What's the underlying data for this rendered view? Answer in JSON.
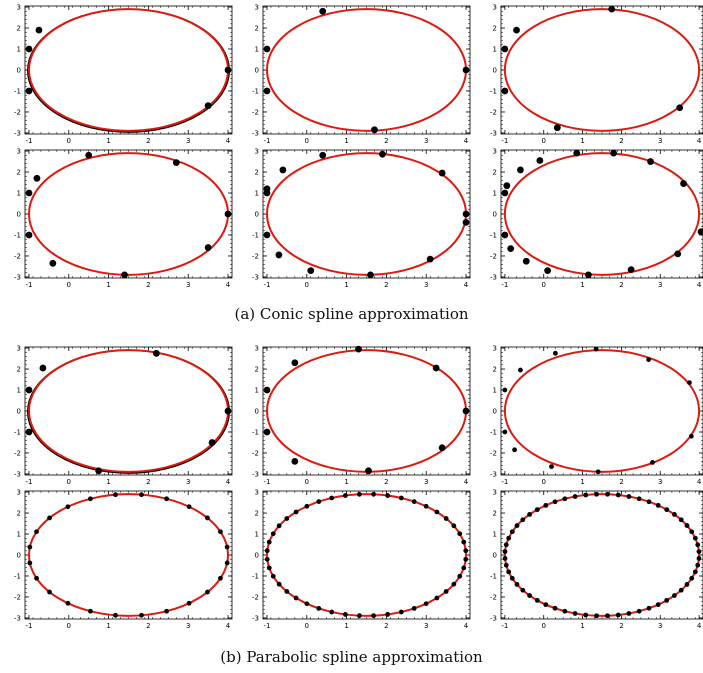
{
  "captions": {
    "a": "(a)  Conic spline approximation",
    "b": "(b)  Parabolic spline approximation"
  },
  "colors": {
    "ellipse": "#e0190e",
    "approx": "#000000",
    "points": "#000000",
    "frame": "#000000"
  },
  "chart_data": [
    {
      "group": "a",
      "type": "scatter",
      "xticks": [
        -1,
        0,
        1,
        2,
        3,
        4
      ],
      "yticks": [
        -3,
        -2,
        -1,
        0,
        1,
        2,
        3
      ],
      "xlim": [
        -1.1,
        4.1
      ],
      "ylim": [
        -3.05,
        3.05
      ],
      "ellipse": {
        "cx": 1.5,
        "cy": 0,
        "a": 2.5,
        "b": 2.9
      },
      "points": [
        [
          -1,
          1
        ],
        [
          -0.75,
          1.9
        ],
        [
          4,
          0
        ],
        [
          3.5,
          -1.7
        ],
        [
          -1,
          -1
        ]
      ],
      "bigPoints": true,
      "showApprox": true
    },
    {
      "group": "a",
      "type": "scatter",
      "xticks": [
        -1,
        0,
        1,
        2,
        3,
        4
      ],
      "yticks": [
        -3,
        -2,
        -1,
        0,
        1,
        2,
        3
      ],
      "xlim": [
        -1.1,
        4.1
      ],
      "ylim": [
        -3.05,
        3.05
      ],
      "ellipse": {
        "cx": 1.5,
        "cy": 0,
        "a": 2.5,
        "b": 2.9
      },
      "points": [
        [
          -1,
          1
        ],
        [
          0.4,
          2.8
        ],
        [
          4,
          0
        ],
        [
          1.7,
          -2.85
        ],
        [
          -1,
          -1
        ]
      ],
      "bigPoints": true,
      "showApprox": false
    },
    {
      "group": "a",
      "type": "scatter",
      "xticks": [
        -1,
        0,
        1,
        2,
        3,
        4
      ],
      "yticks": [
        -3,
        -2,
        -1,
        0,
        1,
        2,
        3
      ],
      "xlim": [
        -1.1,
        4.1
      ],
      "ylim": [
        -3.05,
        3.05
      ],
      "ellipse": {
        "cx": 1.5,
        "cy": 0,
        "a": 2.5,
        "b": 2.9
      },
      "points": [
        [
          -1,
          1
        ],
        [
          -0.7,
          1.9
        ],
        [
          1.75,
          2.9
        ],
        [
          3.5,
          -1.8
        ],
        [
          0.35,
          -2.75
        ],
        [
          -1,
          -1
        ]
      ],
      "bigPoints": true,
      "showApprox": false
    },
    {
      "group": "a",
      "type": "scatter",
      "xticks": [
        -1,
        0,
        1,
        2,
        3,
        4
      ],
      "yticks": [
        -3,
        -2,
        -1,
        0,
        1,
        2,
        3
      ],
      "xlim": [
        -1.1,
        4.1
      ],
      "ylim": [
        -3.05,
        3.05
      ],
      "ellipse": {
        "cx": 1.5,
        "cy": 0,
        "a": 2.5,
        "b": 2.9
      },
      "points": [
        [
          -1,
          1
        ],
        [
          -0.8,
          1.7
        ],
        [
          0.5,
          2.8
        ],
        [
          2.7,
          2.45
        ],
        [
          4,
          0
        ],
        [
          3.5,
          -1.6
        ],
        [
          1.4,
          -2.9
        ],
        [
          -0.4,
          -2.35
        ],
        [
          -1,
          -1
        ]
      ],
      "bigPoints": true,
      "showApprox": false
    },
    {
      "group": "a",
      "type": "scatter",
      "xticks": [
        -1,
        0,
        1,
        2,
        3,
        4
      ],
      "yticks": [
        -3,
        -2,
        -1,
        0,
        1,
        2,
        3
      ],
      "xlim": [
        -1.1,
        4.1
      ],
      "ylim": [
        -3.05,
        3.05
      ],
      "ellipse": {
        "cx": 1.5,
        "cy": 0,
        "a": 2.5,
        "b": 2.9
      },
      "points": [
        [
          -1,
          1
        ],
        [
          -1,
          1.2
        ],
        [
          -0.6,
          2.1
        ],
        [
          0.4,
          2.8
        ],
        [
          1.9,
          2.85
        ],
        [
          3.4,
          1.95
        ],
        [
          4,
          0
        ],
        [
          4,
          -0.4
        ],
        [
          3.1,
          -2.15
        ],
        [
          1.6,
          -2.9
        ],
        [
          0.1,
          -2.7
        ],
        [
          -0.7,
          -1.95
        ],
        [
          -1,
          -1
        ]
      ],
      "bigPoints": true,
      "showApprox": false
    },
    {
      "group": "a",
      "type": "scatter",
      "xticks": [
        -1,
        0,
        1,
        2,
        3,
        4
      ],
      "yticks": [
        -3,
        -2,
        -1,
        0,
        1,
        2,
        3
      ],
      "xlim": [
        -1.1,
        4.1
      ],
      "ylim": [
        -3.05,
        3.05
      ],
      "ellipse": {
        "cx": 1.5,
        "cy": 0,
        "a": 2.5,
        "b": 2.9
      },
      "points": [
        [
          -1,
          1
        ],
        [
          -0.95,
          1.35
        ],
        [
          -0.6,
          2.1
        ],
        [
          -0.1,
          2.55
        ],
        [
          0.85,
          2.9
        ],
        [
          1.8,
          2.9
        ],
        [
          2.75,
          2.5
        ],
        [
          3.6,
          1.45
        ],
        [
          4.05,
          -0.85
        ],
        [
          3.45,
          -1.9
        ],
        [
          2.25,
          -2.65
        ],
        [
          1.15,
          -2.9
        ],
        [
          0.1,
          -2.7
        ],
        [
          -0.45,
          -2.25
        ],
        [
          -0.85,
          -1.65
        ],
        [
          -1,
          -1
        ]
      ],
      "bigPoints": true,
      "showApprox": false
    },
    {
      "group": "b",
      "type": "scatter",
      "xticks": [
        -1,
        0,
        1,
        2,
        3,
        4
      ],
      "yticks": [
        -3,
        -2,
        -1,
        0,
        1,
        2,
        3
      ],
      "xlim": [
        -1.1,
        4.1
      ],
      "ylim": [
        -3.05,
        3.05
      ],
      "ellipse": {
        "cx": 1.5,
        "cy": 0,
        "a": 2.5,
        "b": 2.9
      },
      "points": [
        [
          -1,
          1
        ],
        [
          -0.65,
          2.05
        ],
        [
          2.2,
          2.75
        ],
        [
          4,
          0
        ],
        [
          3.6,
          -1.5
        ],
        [
          0.75,
          -2.85
        ],
        [
          -1,
          -1
        ]
      ],
      "bigPoints": true,
      "showApprox": true
    },
    {
      "group": "b",
      "type": "scatter",
      "xticks": [
        -1,
        0,
        1,
        2,
        3,
        4
      ],
      "yticks": [
        -3,
        -2,
        -1,
        0,
        1,
        2,
        3
      ],
      "xlim": [
        -1.1,
        4.1
      ],
      "ylim": [
        -3.05,
        3.05
      ],
      "ellipse": {
        "cx": 1.5,
        "cy": 0,
        "a": 2.5,
        "b": 2.9
      },
      "points": [
        [
          -1,
          1
        ],
        [
          -0.3,
          2.3
        ],
        [
          1.3,
          2.95
        ],
        [
          3.25,
          2.05
        ],
        [
          4,
          0
        ],
        [
          3.4,
          -1.75
        ],
        [
          1.55,
          -2.85
        ],
        [
          -0.3,
          -2.4
        ],
        [
          -1,
          -1
        ]
      ],
      "bigPoints": true,
      "showApprox": false
    },
    {
      "group": "b",
      "type": "scatter",
      "xticks": [
        -1,
        0,
        1,
        2,
        3,
        4
      ],
      "yticks": [
        -3,
        -2,
        -1,
        0,
        1,
        2,
        3
      ],
      "xlim": [
        -1.1,
        4.1
      ],
      "ylim": [
        -3.05,
        3.05
      ],
      "ellipse": {
        "cx": 1.5,
        "cy": 0,
        "a": 2.5,
        "b": 2.9
      },
      "points": [
        [
          -1,
          1
        ],
        [
          -0.6,
          1.95
        ],
        [
          0.3,
          2.75
        ],
        [
          1.35,
          2.95
        ],
        [
          2.7,
          2.45
        ],
        [
          3.75,
          1.35
        ],
        [
          3.8,
          -1.2
        ],
        [
          2.8,
          -2.45
        ],
        [
          1.4,
          -2.9
        ],
        [
          0.2,
          -2.65
        ],
        [
          -0.75,
          -1.85
        ],
        [
          -1,
          -1
        ]
      ],
      "bigPoints": false,
      "showApprox": false
    },
    {
      "group": "b",
      "type": "scatter",
      "xticks": [
        -1,
        0,
        1,
        2,
        3,
        4
      ],
      "yticks": [
        -3,
        -2,
        -1,
        0,
        1,
        2,
        3
      ],
      "xlim": [
        -1.1,
        4.1
      ],
      "ylim": [
        -3.05,
        3.05
      ],
      "ellipse": {
        "cx": 1.5,
        "cy": 0,
        "a": 2.5,
        "b": 2.9
      },
      "pointCount": 24,
      "bigPoints": false,
      "showApprox": false
    },
    {
      "group": "b",
      "type": "scatter",
      "xticks": [
        -1,
        0,
        1,
        2,
        3,
        4
      ],
      "yticks": [
        -3,
        -2,
        -1,
        0,
        1,
        2,
        3
      ],
      "xlim": [
        -1.1,
        4.1
      ],
      "ylim": [
        -3.05,
        3.05
      ],
      "ellipse": {
        "cx": 1.5,
        "cy": 0,
        "a": 2.5,
        "b": 2.9
      },
      "pointCount": 44,
      "bigPoints": false,
      "showApprox": false
    },
    {
      "group": "b",
      "type": "scatter",
      "xticks": [
        -1,
        0,
        1,
        2,
        3,
        4
      ],
      "yticks": [
        -3,
        -2,
        -1,
        0,
        1,
        2,
        3
      ],
      "xlim": [
        -1.1,
        4.1
      ],
      "ylim": [
        -3.05,
        3.05
      ],
      "ellipse": {
        "cx": 1.5,
        "cy": 0,
        "a": 2.5,
        "b": 2.9
      },
      "pointCount": 56,
      "bigPoints": false,
      "showApprox": false
    }
  ]
}
